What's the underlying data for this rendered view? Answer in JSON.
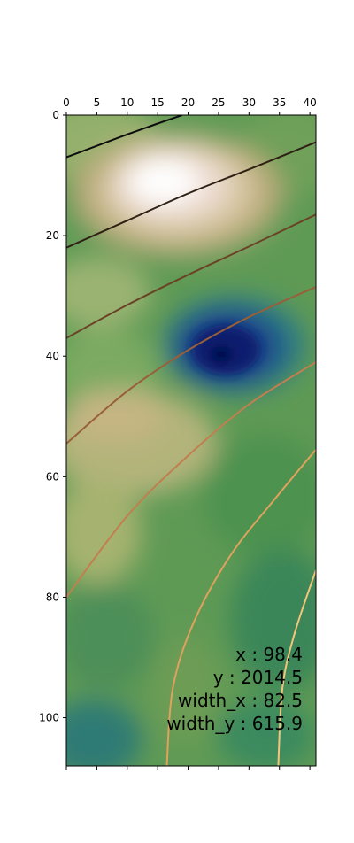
{
  "chart_data": {
    "type": "heatmap",
    "colormap": "gist_earth",
    "grid": false,
    "xlim": [
      0,
      41
    ],
    "ylim": [
      0,
      108
    ],
    "x_ticks": [
      0,
      5,
      10,
      15,
      20,
      25,
      30,
      35,
      40
    ],
    "y_ticks": [
      0,
      20,
      40,
      60,
      80,
      100
    ],
    "x_axis_position": "top",
    "features": [
      {
        "kind": "peak",
        "x": 16,
        "y": 13,
        "level": "high"
      },
      {
        "kind": "trough",
        "x": 26,
        "y": 40,
        "level": "low"
      },
      {
        "kind": "hill",
        "x": 12,
        "y": 53,
        "level": "moderate"
      }
    ],
    "series": [
      {
        "x": [
          0,
          5,
          10,
          15,
          19
        ],
        "y": [
          7.0,
          5.1,
          3.2,
          1.4,
          0
        ],
        "color": "#0d0d0d"
      },
      {
        "x": [
          0,
          10,
          20,
          30,
          41
        ],
        "y": [
          22.0,
          17.5,
          13.0,
          9.0,
          4.5
        ],
        "color": "#2e2014"
      },
      {
        "x": [
          0,
          10,
          20,
          30,
          41
        ],
        "y": [
          37.0,
          31.5,
          26.5,
          21.8,
          16.5
        ],
        "color": "#6a4326"
      },
      {
        "x": [
          0,
          10,
          20,
          30,
          41
        ],
        "y": [
          54.5,
          45.8,
          39.0,
          33.5,
          28.5
        ],
        "color": "#98603a"
      },
      {
        "x": [
          0,
          10,
          20,
          30,
          41
        ],
        "y": [
          80.0,
          66.5,
          56.5,
          48.0,
          41.0
        ],
        "color": "#c07f4e"
      },
      {
        "x": [
          16.5,
          17.5,
          21,
          27,
          34,
          41
        ],
        "y": [
          108,
          95,
          84,
          73,
          64,
          55.5
        ],
        "color": "#dfa25e"
      },
      {
        "x": [
          34.8,
          35.5,
          37.5,
          41
        ],
        "y": [
          108,
          95,
          86,
          75.5
        ],
        "color": "#f4c47a"
      }
    ],
    "annotation": [
      "x : 98.4",
      "y : 2014.5",
      "width_x : 82.5",
      "width_y : 615.9"
    ]
  }
}
